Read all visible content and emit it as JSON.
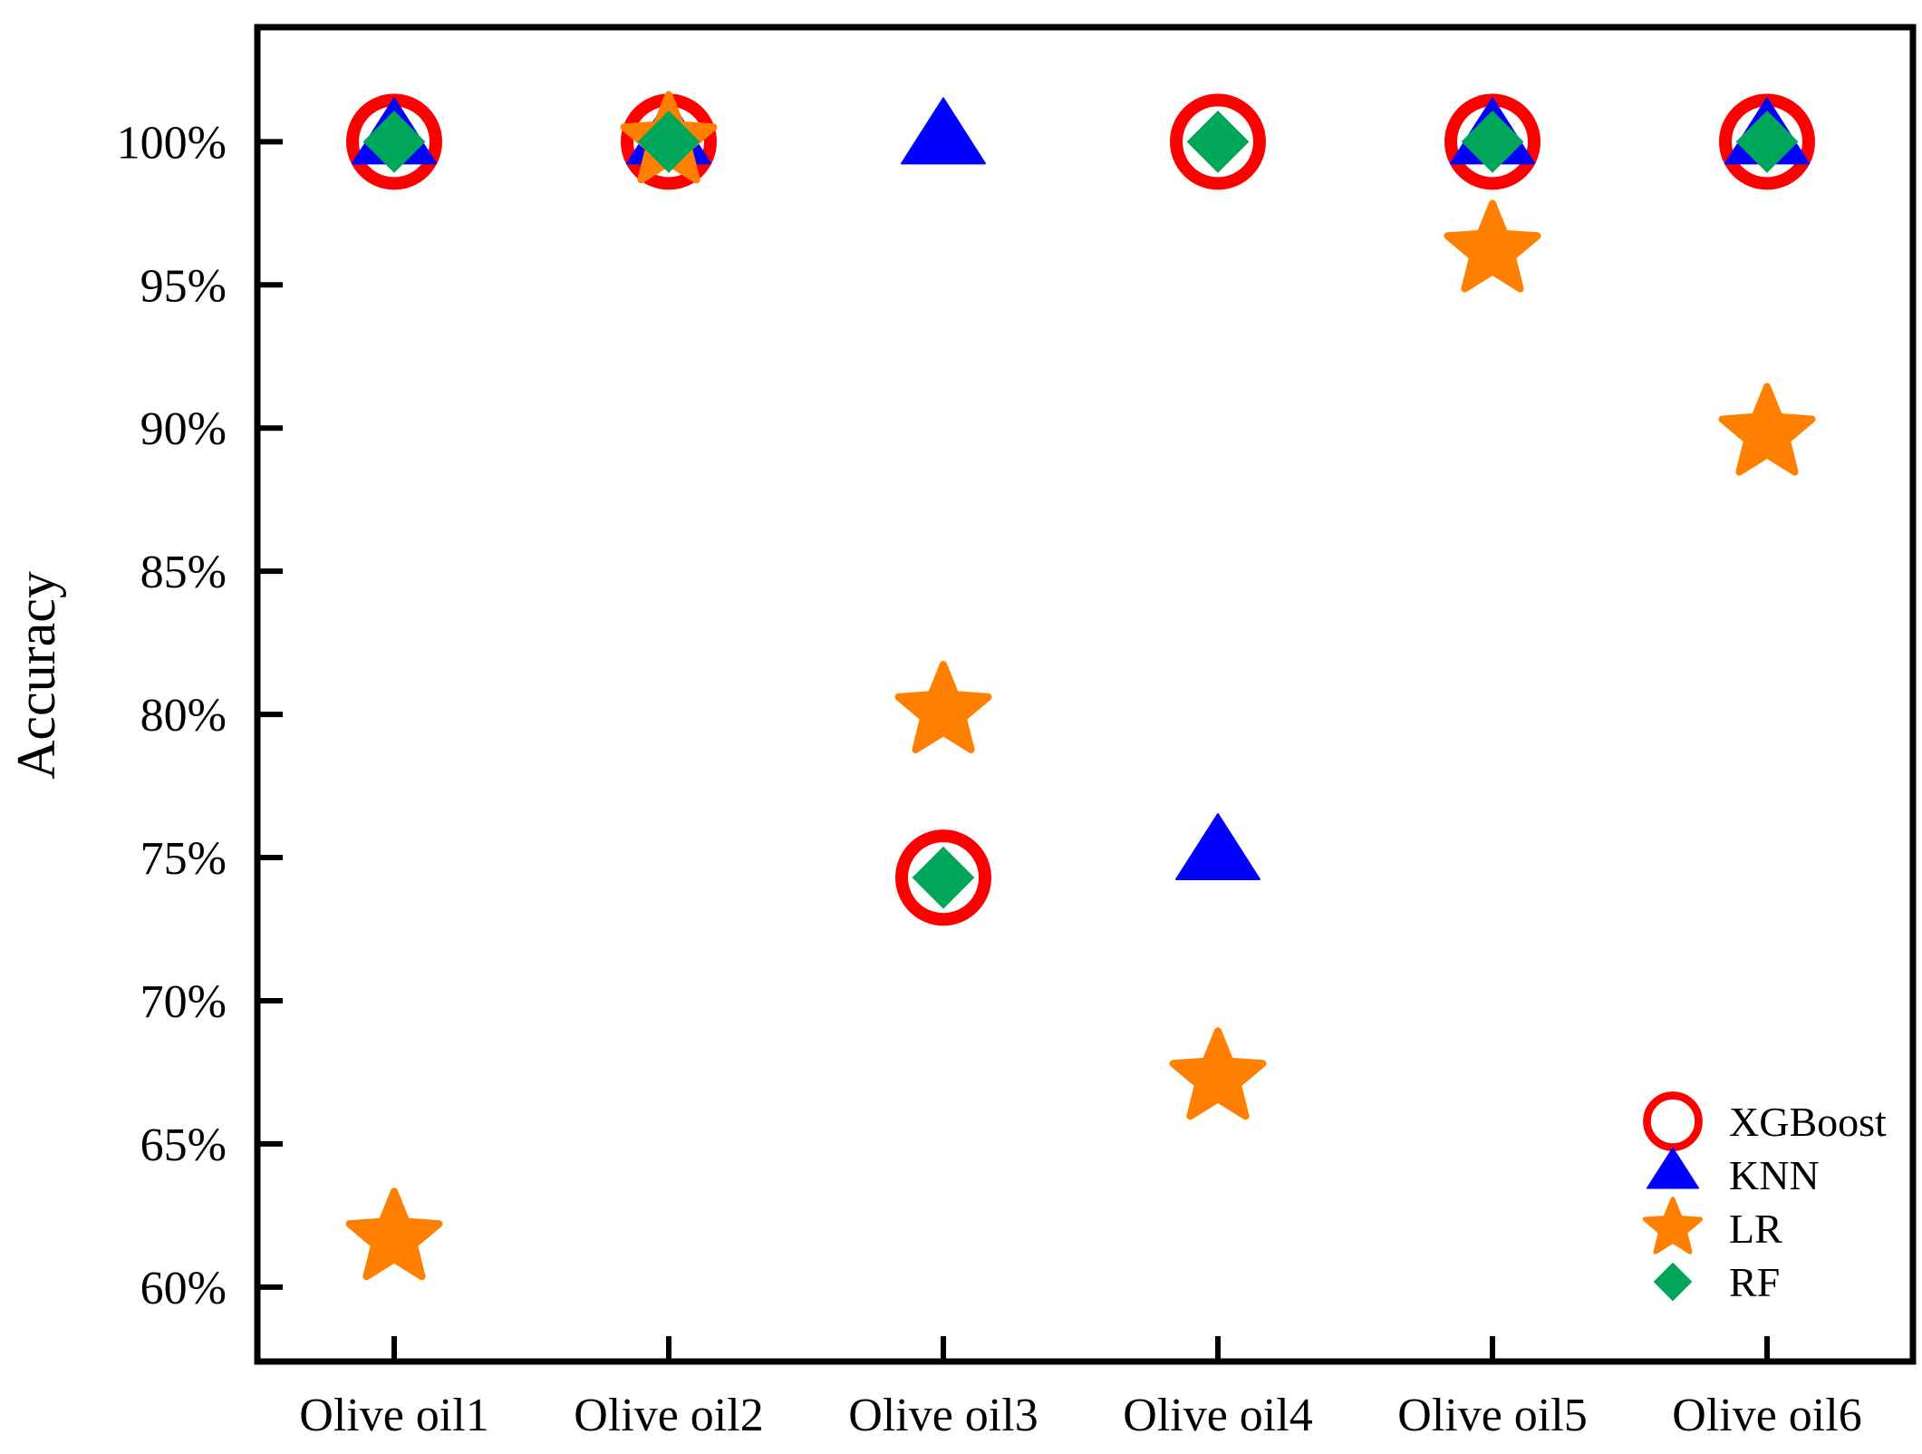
{
  "chart_data": {
    "type": "scatter",
    "title": "",
    "xlabel": "",
    "ylabel": "Accuracy",
    "categories": [
      "Olive oil1",
      "Olive oil2",
      "Olive oil3",
      "Olive oil4",
      "Olive oil5",
      "Olive oil6"
    ],
    "yticks": [
      "60%",
      "65%",
      "70%",
      "75%",
      "80%",
      "85%",
      "90%",
      "95%",
      "100%"
    ],
    "ylim": [
      57.4,
      104.0
    ],
    "grid": false,
    "legend_position": "bottom-right",
    "series": [
      {
        "name": "XGBoost",
        "marker": "circle-open",
        "color": "#ff0000",
        "values": [
          100,
          100,
          74.3,
          100,
          100,
          100
        ]
      },
      {
        "name": "KNN",
        "marker": "triangle",
        "color": "#0000ff",
        "values": [
          100,
          100,
          100,
          75,
          100,
          100
        ]
      },
      {
        "name": "LR",
        "marker": "star",
        "color": "#ff8000",
        "values": [
          61.7,
          100,
          80.1,
          67.3,
          96.2,
          89.8
        ]
      },
      {
        "name": "RF",
        "marker": "diamond",
        "color": "#00a65a",
        "values": [
          100,
          100,
          74.3,
          100,
          100,
          100
        ]
      }
    ]
  }
}
